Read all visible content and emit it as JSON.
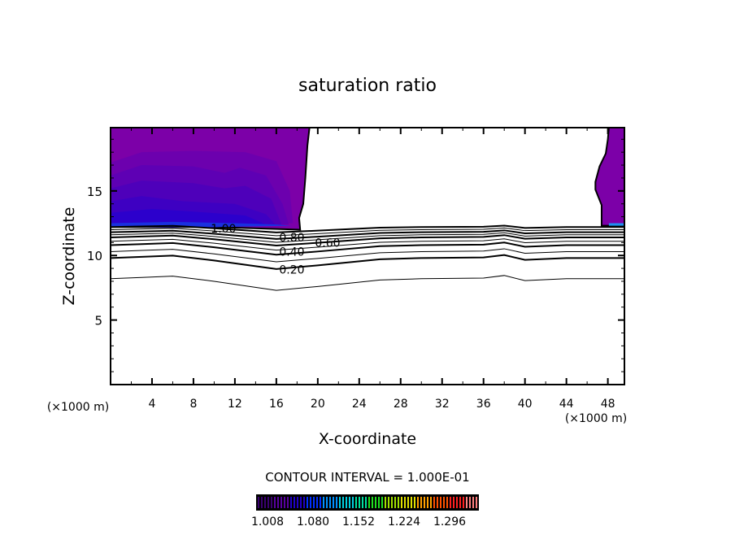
{
  "chart_data": {
    "type": "contour",
    "title": "saturation ratio",
    "xlabel": "X-coordinate",
    "ylabel": "Z-coordinate",
    "x_unit_label": "(×1000 m)",
    "y_unit_label": "(×1000 m)",
    "xlim": [
      0,
      49.6
    ],
    "ylim": [
      0,
      19.9
    ],
    "x_ticks": [
      4,
      8,
      12,
      16,
      20,
      24,
      28,
      32,
      36,
      40,
      44,
      48
    ],
    "x_tick_labels": [
      "4",
      "8",
      "12",
      "16",
      "20",
      "24",
      "28",
      "32",
      "36",
      "40",
      "44",
      "48"
    ],
    "y_ticks": [
      5,
      10,
      15
    ],
    "y_tick_labels": [
      "5",
      "10",
      "15"
    ],
    "contour_interval_text": "CONTOUR INTERVAL = 1.000E-01",
    "contour_levels": [
      0.1,
      0.2,
      0.3,
      0.4,
      0.5,
      0.6,
      0.7,
      0.8,
      0.9,
      1.0
    ],
    "contour_base_z": [
      8.2,
      9.8,
      10.3,
      10.8,
      11.1,
      11.4,
      11.6,
      11.8,
      12.0,
      12.2
    ],
    "contour_profile": [
      [
        0,
        0
      ],
      [
        3,
        0.1
      ],
      [
        6,
        0.2
      ],
      [
        10,
        -0.2
      ],
      [
        16,
        -0.9
      ],
      [
        20,
        -0.6
      ],
      [
        26,
        -0.1
      ],
      [
        30,
        0
      ],
      [
        36,
        0.05
      ],
      [
        38,
        0.25
      ],
      [
        40,
        -0.15
      ],
      [
        44,
        0
      ],
      [
        49.6,
        0
      ]
    ],
    "contour_labels": [
      {
        "text": "1.00",
        "x": 10.9,
        "z": 12.1
      },
      {
        "text": "0.80",
        "x": 17.5,
        "z": 11.4
      },
      {
        "text": "0.60",
        "x": 17.5,
        "z": 11.0
      },
      {
        "text": "0.40",
        "x": 17.5,
        "z": 10.3
      },
      {
        "text": "0.20",
        "x": 17.5,
        "z": 8.9
      }
    ],
    "filled_regions": [
      {
        "level": 1.008,
        "color": "#7c00a8",
        "points": [
          [
            0,
            12.2
          ],
          [
            0,
            19.9
          ],
          [
            19.2,
            19.9
          ],
          [
            19.0,
            18.5
          ],
          [
            18.8,
            16
          ],
          [
            18.6,
            14
          ],
          [
            18.2,
            12.9
          ],
          [
            18.3,
            12.0
          ],
          [
            10,
            12.2
          ]
        ]
      },
      {
        "level": 1.02,
        "color": "#6c00ae",
        "points": [
          [
            0,
            12.2
          ],
          [
            0,
            17.2
          ],
          [
            3,
            18.0
          ],
          [
            8,
            18.1
          ],
          [
            13,
            18.0
          ],
          [
            16,
            17.3
          ],
          [
            17.3,
            15
          ],
          [
            17.6,
            12.5
          ],
          [
            10,
            12.2
          ]
        ]
      },
      {
        "level": 1.04,
        "color": "#5e00b4",
        "points": [
          [
            0,
            12.2
          ],
          [
            0,
            16.2
          ],
          [
            3,
            17.0
          ],
          [
            8,
            16.9
          ],
          [
            11,
            16.4
          ],
          [
            12.5,
            16.8
          ],
          [
            15,
            16.2
          ],
          [
            16.6,
            14
          ],
          [
            17.2,
            12.4
          ],
          [
            10,
            12.2
          ]
        ]
      },
      {
        "level": 1.06,
        "color": "#4e00ba",
        "points": [
          [
            0,
            12.2
          ],
          [
            0,
            15.2
          ],
          [
            3,
            15.8
          ],
          [
            8,
            15.6
          ],
          [
            11,
            15.2
          ],
          [
            13,
            15.4
          ],
          [
            15.5,
            14.4
          ],
          [
            16.5,
            12.4
          ],
          [
            10,
            12.2
          ]
        ]
      },
      {
        "level": 1.08,
        "color": "#3e00c2",
        "points": [
          [
            0,
            12.2
          ],
          [
            0,
            14.2
          ],
          [
            3,
            14.6
          ],
          [
            7,
            14.2
          ],
          [
            12,
            14.0
          ],
          [
            15,
            13.2
          ],
          [
            16,
            12.3
          ],
          [
            10,
            12.2
          ]
        ]
      },
      {
        "level": 1.1,
        "color": "#2c00cc",
        "points": [
          [
            0,
            12.2
          ],
          [
            0,
            13.3
          ],
          [
            4,
            13.6
          ],
          [
            8,
            13.4
          ],
          [
            13,
            13.1
          ],
          [
            15,
            12.4
          ],
          [
            10,
            12.2
          ]
        ]
      },
      {
        "level": 1.13,
        "color": "#1a30e0",
        "points": [
          [
            0,
            12.2
          ],
          [
            0,
            12.5
          ],
          [
            6,
            12.6
          ],
          [
            12,
            12.5
          ],
          [
            16,
            12.4
          ],
          [
            17.5,
            12.3
          ],
          [
            10,
            12.2
          ]
        ]
      },
      {
        "level": 1.008,
        "color": "#7c00a8",
        "points": [
          [
            48.1,
            19.9
          ],
          [
            49.6,
            19.9
          ],
          [
            49.6,
            12.3
          ],
          [
            47.4,
            12.3
          ],
          [
            47.4,
            13.9
          ],
          [
            46.8,
            15.1
          ],
          [
            46.8,
            15.7
          ],
          [
            47.2,
            16.9
          ],
          [
            47.8,
            17.9
          ],
          [
            48.0,
            19
          ]
        ]
      },
      {
        "level": 1.13,
        "color": "#2090f0",
        "points": [
          [
            48.1,
            12.3
          ],
          [
            49.6,
            12.3
          ],
          [
            49.6,
            12.5
          ],
          [
            48.1,
            12.5
          ]
        ]
      }
    ],
    "colorbar": {
      "tick_labels": [
        "1.008",
        "1.080",
        "1.152",
        "1.224",
        "1.296"
      ],
      "range": [
        1.008,
        1.35
      ],
      "colors": [
        "#3a0070",
        "#5800a0",
        "#2000c8",
        "#0030ff",
        "#0090ff",
        "#00d0e0",
        "#00e0a0",
        "#20e020",
        "#a0e000",
        "#e0e000",
        "#ffa000",
        "#ff5000",
        "#ff2020",
        "#ff8080"
      ]
    }
  }
}
